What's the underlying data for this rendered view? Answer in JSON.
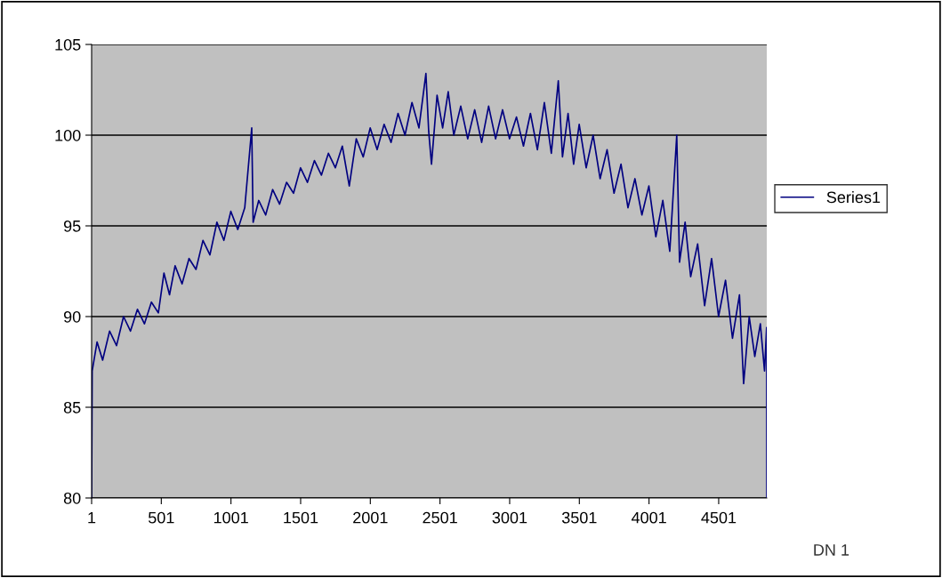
{
  "chart_data": {
    "type": "line",
    "x": [
      1,
      5,
      40,
      80,
      130,
      180,
      230,
      280,
      330,
      380,
      430,
      480,
      520,
      560,
      600,
      650,
      700,
      750,
      800,
      850,
      900,
      950,
      1000,
      1050,
      1100,
      1150,
      1160,
      1200,
      1250,
      1300,
      1350,
      1400,
      1450,
      1500,
      1550,
      1600,
      1650,
      1700,
      1750,
      1800,
      1850,
      1900,
      1950,
      2000,
      2050,
      2100,
      2150,
      2200,
      2250,
      2300,
      2350,
      2400,
      2420,
      2440,
      2480,
      2520,
      2560,
      2600,
      2650,
      2700,
      2750,
      2800,
      2850,
      2900,
      2950,
      3000,
      3050,
      3100,
      3150,
      3200,
      3250,
      3300,
      3350,
      3380,
      3420,
      3460,
      3500,
      3550,
      3600,
      3650,
      3700,
      3750,
      3800,
      3850,
      3900,
      3950,
      4000,
      4050,
      4100,
      4150,
      4200,
      4220,
      4260,
      4300,
      4350,
      4400,
      4450,
      4500,
      4550,
      4600,
      4650,
      4680,
      4720,
      4760,
      4800,
      4830,
      4845,
      4846
    ],
    "series": [
      {
        "name": "Series1",
        "color": "#000080",
        "values": [
          80,
          87.0,
          88.6,
          87.6,
          89.2,
          88.4,
          90.0,
          89.2,
          90.4,
          89.6,
          90.8,
          90.2,
          92.4,
          91.2,
          92.8,
          91.8,
          93.2,
          92.6,
          94.2,
          93.4,
          95.2,
          94.2,
          95.8,
          94.8,
          96.0,
          100.4,
          95.2,
          96.4,
          95.6,
          97.0,
          96.2,
          97.4,
          96.8,
          98.2,
          97.4,
          98.6,
          97.8,
          99.0,
          98.2,
          99.4,
          97.2,
          99.8,
          98.8,
          100.4,
          99.2,
          100.6,
          99.6,
          101.2,
          100.0,
          101.8,
          100.4,
          103.4,
          100.2,
          98.4,
          102.2,
          100.4,
          102.4,
          100.0,
          101.6,
          99.8,
          101.4,
          99.6,
          101.6,
          99.8,
          101.4,
          99.8,
          101.0,
          99.4,
          101.2,
          99.2,
          101.8,
          99.0,
          103.0,
          98.8,
          101.2,
          98.4,
          100.6,
          98.2,
          100.0,
          97.6,
          99.2,
          96.8,
          98.4,
          96.0,
          97.6,
          95.6,
          97.2,
          94.4,
          96.4,
          93.6,
          100.0,
          93.0,
          95.2,
          92.2,
          94.0,
          90.6,
          93.2,
          90.0,
          92.0,
          88.8,
          91.2,
          86.3,
          90.0,
          87.8,
          89.6,
          87.0,
          89.4,
          80
        ]
      }
    ],
    "xlim": [
      1,
      4846
    ],
    "xticks": [
      1,
      501,
      1001,
      1501,
      2001,
      2501,
      3001,
      3501,
      4001,
      4501
    ],
    "ylim": [
      80,
      105
    ],
    "yticks": [
      80,
      85,
      90,
      95,
      100,
      105
    ],
    "grid": "y",
    "legend": "right",
    "marker": "none",
    "line_style": "solid",
    "annotations": [
      "DN 1"
    ]
  }
}
